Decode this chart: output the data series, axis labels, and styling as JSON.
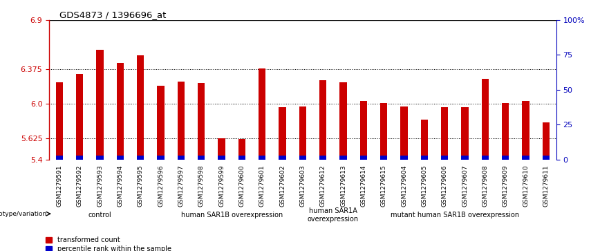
{
  "title": "GDS4873 / 1396696_at",
  "samples": [
    "GSM1279591",
    "GSM1279592",
    "GSM1279593",
    "GSM1279594",
    "GSM1279595",
    "GSM1279596",
    "GSM1279597",
    "GSM1279598",
    "GSM1279599",
    "GSM1279600",
    "GSM1279601",
    "GSM1279602",
    "GSM1279603",
    "GSM1279612",
    "GSM1279613",
    "GSM1279614",
    "GSM1279615",
    "GSM1279604",
    "GSM1279605",
    "GSM1279606",
    "GSM1279607",
    "GSM1279608",
    "GSM1279609",
    "GSM1279610",
    "GSM1279611"
  ],
  "transformed_count": [
    6.23,
    6.32,
    6.58,
    6.44,
    6.52,
    6.19,
    6.24,
    6.22,
    5.63,
    5.62,
    6.38,
    5.96,
    5.97,
    6.25,
    6.23,
    6.03,
    6.01,
    5.97,
    5.83,
    5.96,
    5.96,
    6.27,
    6.01,
    6.03,
    5.8
  ],
  "percentile_rank": [
    8,
    9,
    10,
    8,
    10,
    8,
    8,
    8,
    3,
    2,
    9,
    4,
    4,
    8,
    8,
    6,
    5,
    4,
    2,
    4,
    4,
    8,
    5,
    5,
    3
  ],
  "ylim_left": [
    5.4,
    6.9
  ],
  "yticks_left": [
    5.4,
    5.625,
    6.0,
    6.375,
    6.9
  ],
  "ylim_right": [
    0,
    100
  ],
  "yticks_right": [
    0,
    25,
    50,
    75,
    100
  ],
  "groups": [
    {
      "label": "control",
      "start": 0,
      "end": 5
    },
    {
      "label": "human SAR1B overexpression",
      "start": 5,
      "end": 13
    },
    {
      "label": "human SAR1A\noverexpression",
      "start": 13,
      "end": 15
    },
    {
      "label": "mutant human SAR1B overexpression",
      "start": 15,
      "end": 25
    }
  ],
  "group_colors": [
    "#b8f0b8",
    "#b8f0b8",
    "#b8f0b8",
    "#5de85d"
  ],
  "bar_color_red": "#cc0000",
  "bar_color_blue": "#0000cc",
  "bar_width": 0.35,
  "background_color": "#ffffff",
  "plot_bg": "#ffffff",
  "xtick_area_bg": "#c8c8c8",
  "left_axis_color": "#cc0000",
  "right_axis_color": "#0000bb",
  "genotype_label": "genotype/variation",
  "legend_transformed": "transformed count",
  "legend_percentile": "percentile rank within the sample",
  "blue_bar_height": 0.038
}
